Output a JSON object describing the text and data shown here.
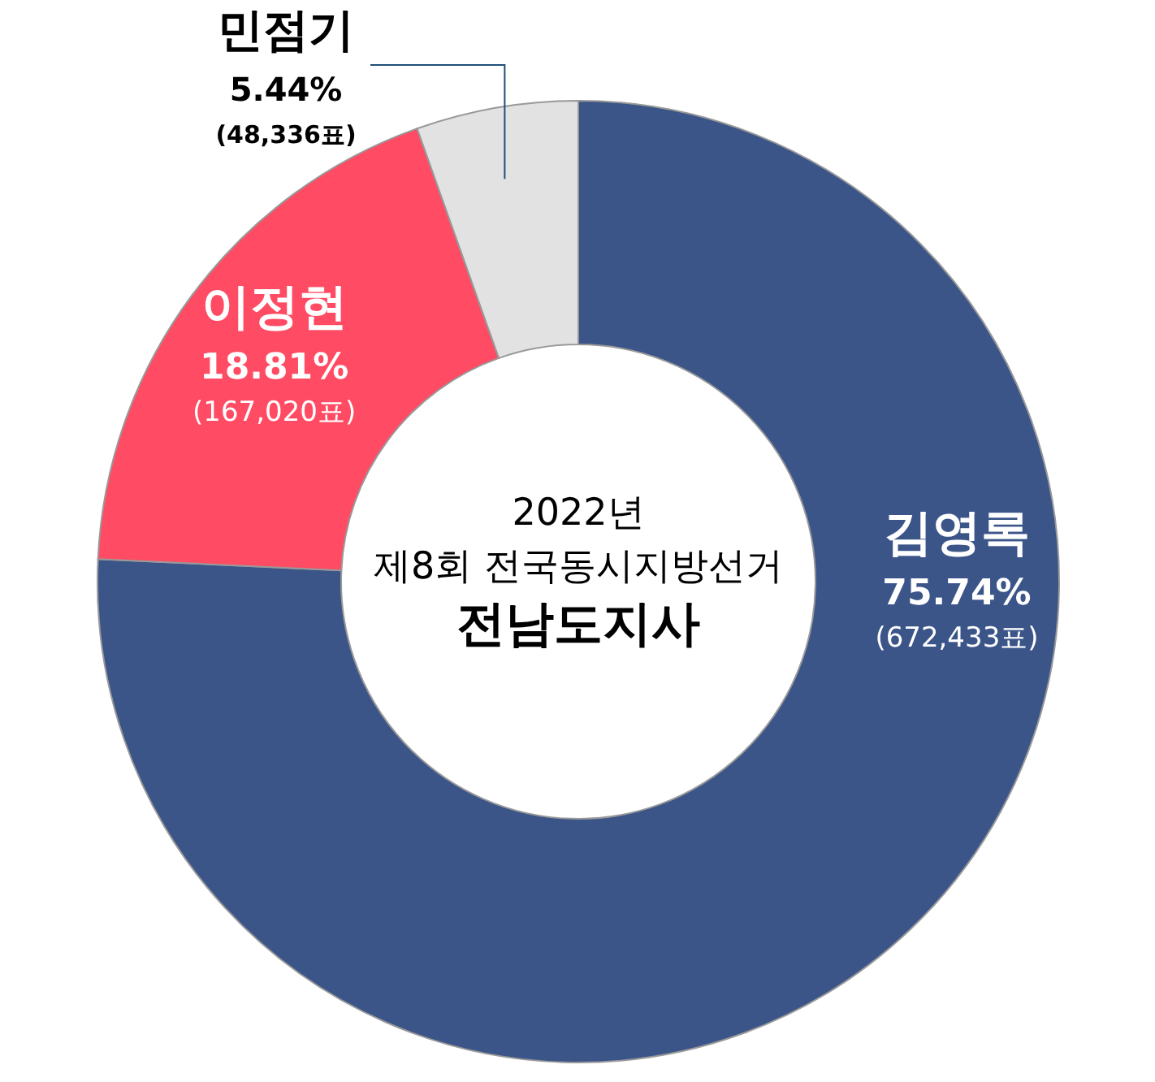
{
  "chart_data": {
    "type": "donut",
    "title": "전남도지사",
    "subtitle": "2022년\n제8회 전국동시지방선거",
    "categories": [
      "김영록",
      "이정현",
      "민점기"
    ],
    "values": [
      75.74,
      18.81,
      5.44
    ],
    "colors": [
      "#3b5589",
      "#ff4b63",
      "#e2e2e2"
    ],
    "value_labels": [
      "75.74%\n(672,433표)",
      "18.81%\n(167,020표)",
      "5.44%\n(48,336표)"
    ],
    "legend": false
  }
}
